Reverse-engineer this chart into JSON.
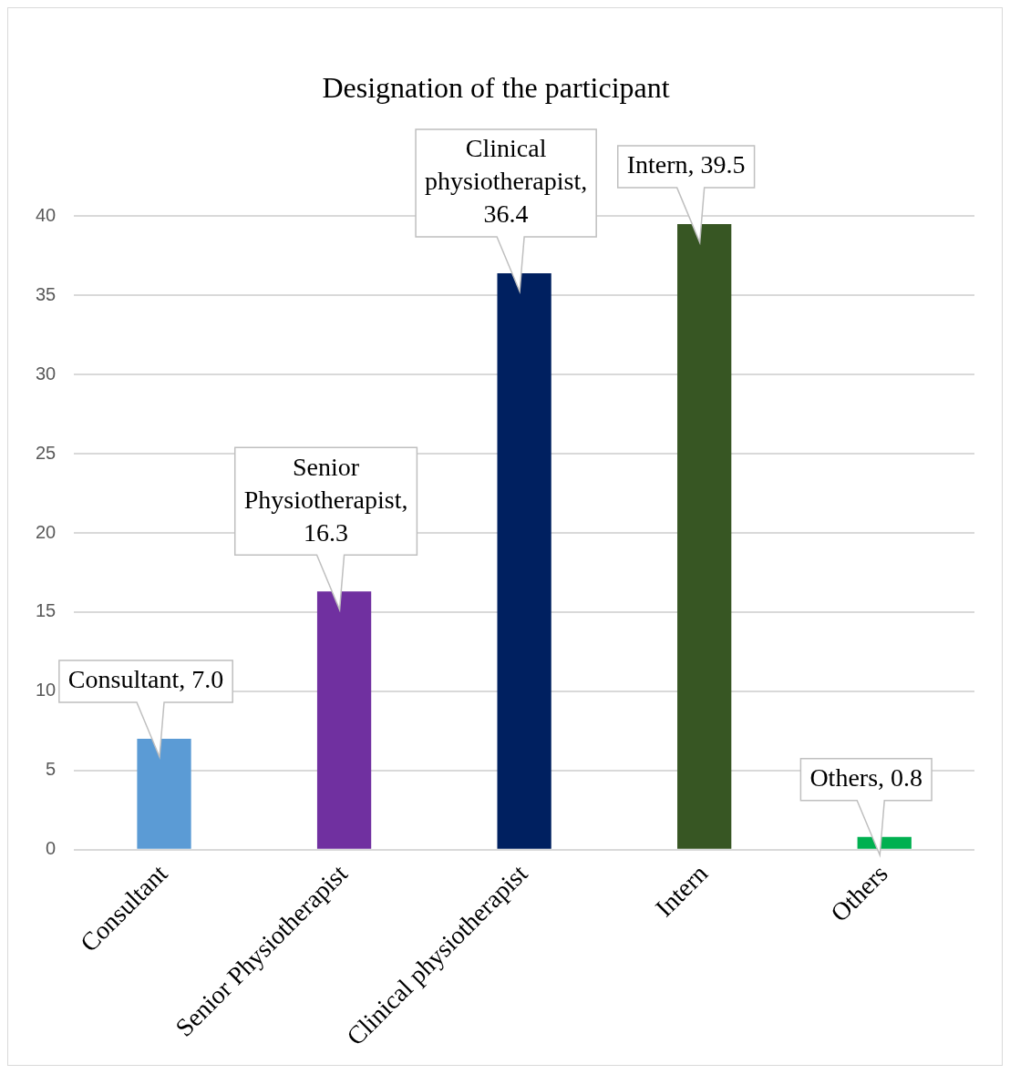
{
  "chart_data": {
    "type": "bar",
    "title": "Designation of the participant",
    "categories": [
      "Consultant",
      "Senior Physiotherapist",
      "Clinical physiotherapist",
      "Intern",
      "Others"
    ],
    "values": [
      7.0,
      16.3,
      36.4,
      39.5,
      0.8
    ],
    "colors": [
      "#5b9bd5",
      "#7030a0",
      "#002060",
      "#375623",
      "#00b050"
    ],
    "value_labels": [
      "Consultant, 7.0",
      "Senior Physiotherapist, 16.3",
      "Clinical physiotherapist, 36.4",
      "Intern, 39.5",
      "Others, 0.8"
    ],
    "ylim": [
      0,
      40
    ],
    "yticks": [
      0,
      5,
      10,
      15,
      20,
      25,
      30,
      35,
      40
    ],
    "grid": "y",
    "legend": false
  }
}
